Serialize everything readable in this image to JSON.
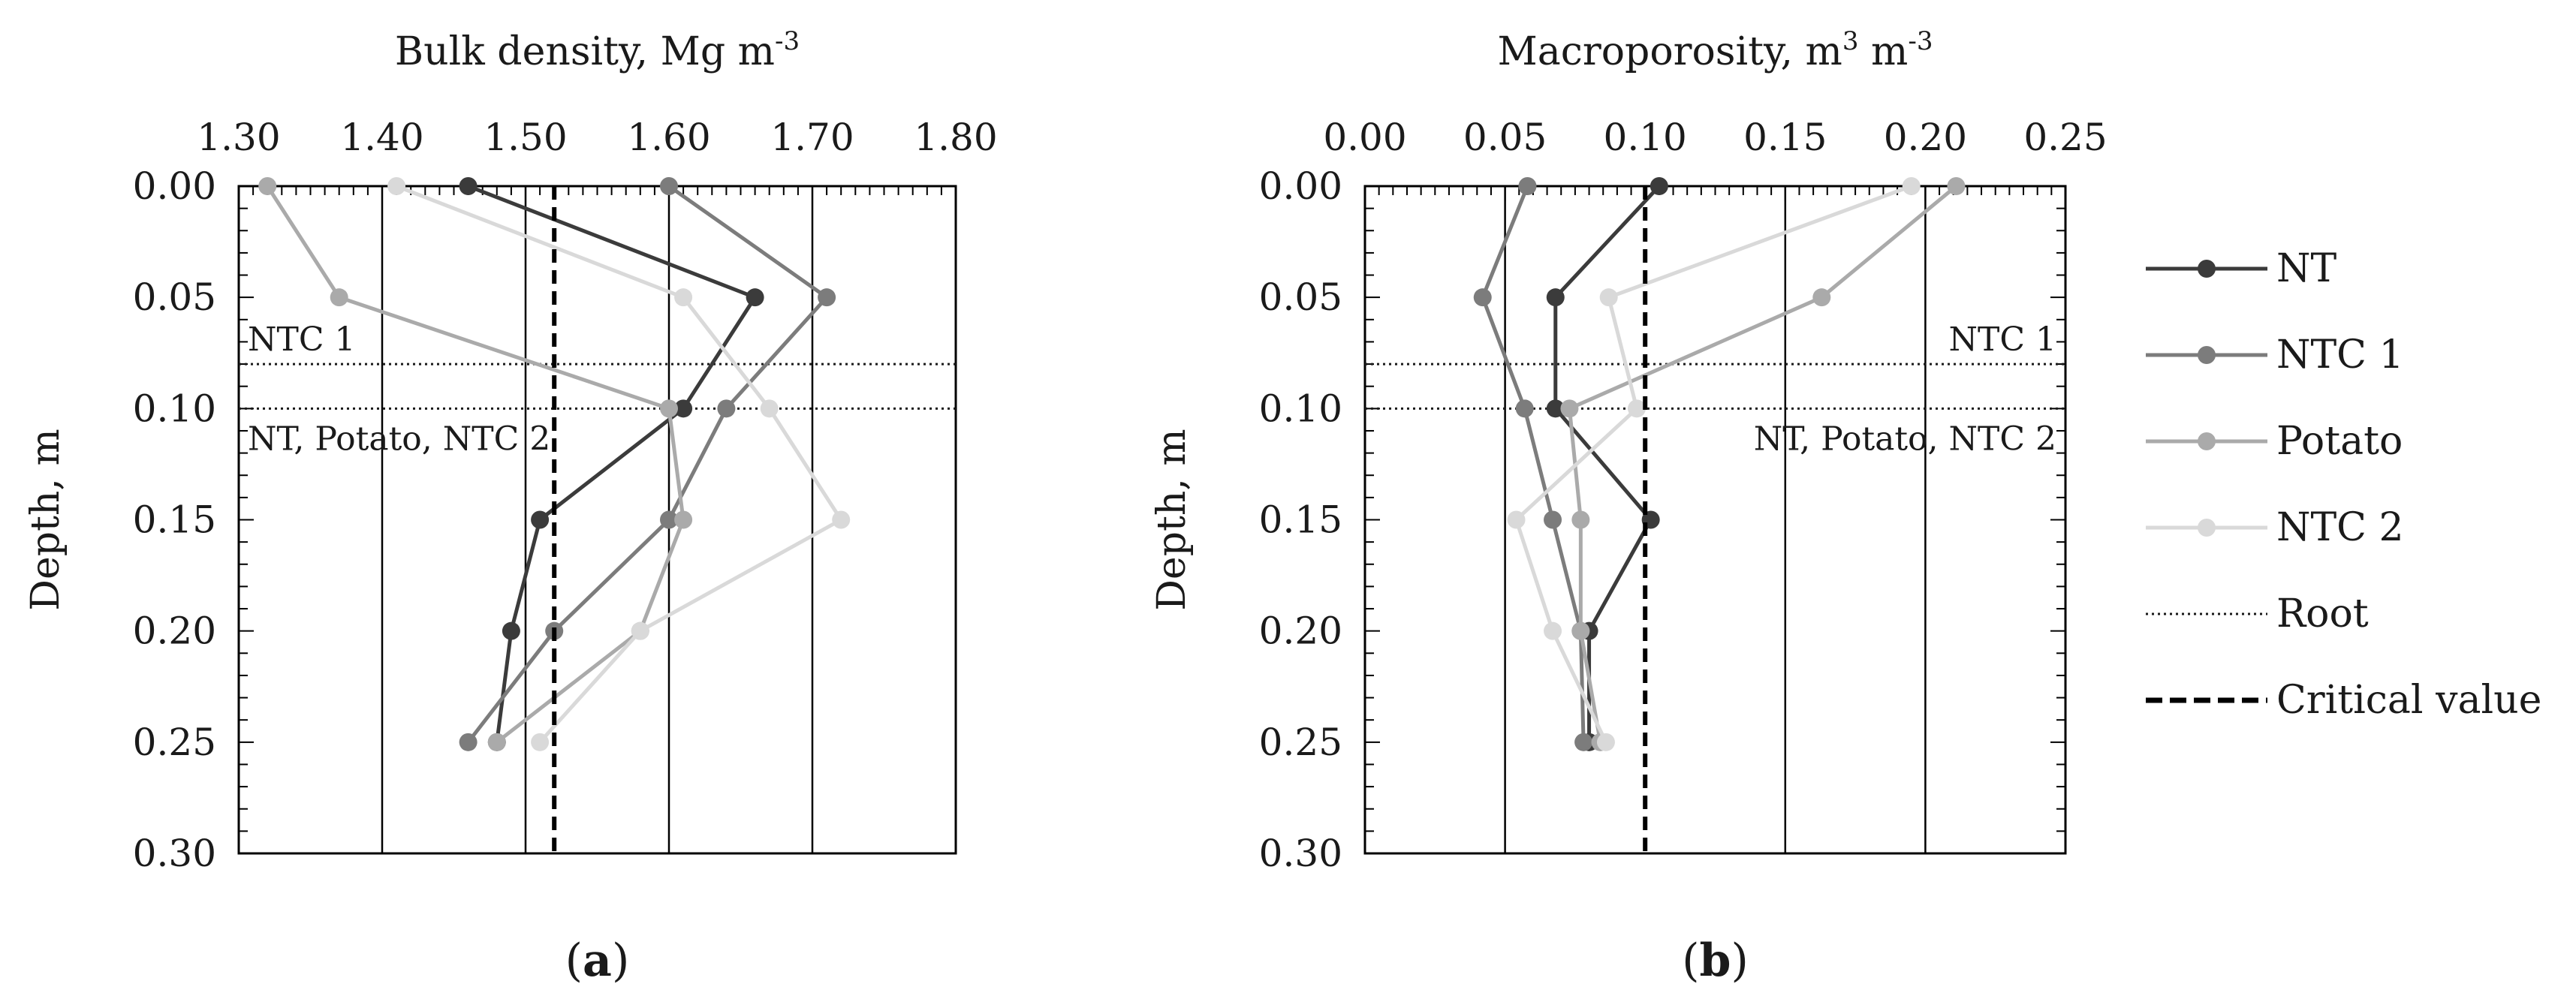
{
  "chart_data": [
    {
      "type": "line",
      "panel_label": {
        "open": "(",
        "letter": "a",
        "close": ")"
      },
      "xlabel": {
        "main": "Bulk density, Mg m",
        "sup": "-3"
      },
      "ylabel": "Depth, m",
      "xlim": [
        1.3,
        1.8
      ],
      "ylim": [
        0.0,
        0.3
      ],
      "y_reversed": true,
      "x_axis_position": "top",
      "xticks": [
        "1.30",
        "1.40",
        "1.50",
        "1.60",
        "1.70",
        "1.80"
      ],
      "xtick_values": [
        1.3,
        1.4,
        1.5,
        1.6,
        1.7,
        1.8
      ],
      "yticks": [
        "0.00",
        "0.05",
        "0.10",
        "0.15",
        "0.20",
        "0.25",
        "0.30"
      ],
      "ytick_values": [
        0.0,
        0.05,
        0.1,
        0.15,
        0.2,
        0.25,
        0.3
      ],
      "vertical_gridlines": [
        1.4,
        1.5,
        1.6,
        1.7
      ],
      "series": [
        {
          "name": "NT",
          "color": "#3b3b3b",
          "points": [
            [
              1.46,
              0.0
            ],
            [
              1.66,
              0.05
            ],
            [
              1.61,
              0.1
            ],
            [
              1.51,
              0.15
            ],
            [
              1.49,
              0.2
            ],
            [
              1.48,
              0.25
            ]
          ]
        },
        {
          "name": "NTC 1",
          "color": "#7c7c7c",
          "points": [
            [
              1.6,
              0.0
            ],
            [
              1.71,
              0.05
            ],
            [
              1.64,
              0.1
            ],
            [
              1.6,
              0.15
            ],
            [
              1.52,
              0.2
            ],
            [
              1.46,
              0.25
            ]
          ]
        },
        {
          "name": "Potato",
          "color": "#aaaaaa",
          "points": [
            [
              1.32,
              0.0
            ],
            [
              1.37,
              0.05
            ],
            [
              1.6,
              0.1
            ],
            [
              1.61,
              0.15
            ],
            [
              1.58,
              0.2
            ],
            [
              1.48,
              0.25
            ]
          ]
        },
        {
          "name": "NTC 2",
          "color": "#d9d9d9",
          "points": [
            [
              1.41,
              0.0
            ],
            [
              1.61,
              0.05
            ],
            [
              1.67,
              0.1
            ],
            [
              1.72,
              0.15
            ],
            [
              1.58,
              0.2
            ],
            [
              1.51,
              0.25
            ]
          ]
        }
      ],
      "root_lines": [
        {
          "depth": 0.08,
          "label": "NTC 1",
          "label_side": "left"
        },
        {
          "depth": 0.1,
          "label": "NT, Potato, NTC 2",
          "label_side": "left"
        }
      ],
      "critical_value": 1.52
    },
    {
      "type": "line",
      "panel_label": {
        "open": "(",
        "letter": "b",
        "close": ")"
      },
      "xlabel": {
        "main": "Macroporosity, m",
        "sup": "3",
        "mid": " m",
        "sup2": "-3"
      },
      "ylabel": "Depth, m",
      "xlim": [
        0.0,
        0.25
      ],
      "ylim": [
        0.0,
        0.3
      ],
      "y_reversed": true,
      "x_axis_position": "top",
      "xticks": [
        "0.00",
        "0.05",
        "0.10",
        "0.15",
        "0.20",
        "0.25"
      ],
      "xtick_values": [
        0.0,
        0.05,
        0.1,
        0.15,
        0.2,
        0.25
      ],
      "yticks": [
        "0.00",
        "0.05",
        "0.10",
        "0.15",
        "0.20",
        "0.25",
        "0.30"
      ],
      "ytick_values": [
        0.0,
        0.05,
        0.1,
        0.15,
        0.2,
        0.25,
        0.3
      ],
      "vertical_gridlines": [
        0.05,
        0.15,
        0.2
      ],
      "series": [
        {
          "name": "NT",
          "color": "#3b3b3b",
          "points": [
            [
              0.105,
              0.0
            ],
            [
              0.068,
              0.05
            ],
            [
              0.068,
              0.1
            ],
            [
              0.102,
              0.15
            ],
            [
              0.08,
              0.2
            ],
            [
              0.08,
              0.25
            ]
          ]
        },
        {
          "name": "NTC 1",
          "color": "#7c7c7c",
          "points": [
            [
              0.058,
              0.0
            ],
            [
              0.042,
              0.05
            ],
            [
              0.057,
              0.1
            ],
            [
              0.067,
              0.15
            ],
            [
              0.077,
              0.2
            ],
            [
              0.078,
              0.25
            ]
          ]
        },
        {
          "name": "Potato",
          "color": "#aaaaaa",
          "points": [
            [
              0.211,
              0.0
            ],
            [
              0.163,
              0.05
            ],
            [
              0.073,
              0.1
            ],
            [
              0.077,
              0.15
            ],
            [
              0.077,
              0.2
            ],
            [
              0.084,
              0.25
            ]
          ]
        },
        {
          "name": "NTC 2",
          "color": "#d9d9d9",
          "points": [
            [
              0.195,
              0.0
            ],
            [
              0.087,
              0.05
            ],
            [
              0.097,
              0.1
            ],
            [
              0.054,
              0.15
            ],
            [
              0.067,
              0.2
            ],
            [
              0.086,
              0.25
            ]
          ]
        }
      ],
      "root_lines": [
        {
          "depth": 0.08,
          "label": "NTC 1",
          "label_side": "right"
        },
        {
          "depth": 0.1,
          "label": "NT, Potato, NTC 2",
          "label_side": "right"
        }
      ],
      "critical_value": 0.1
    }
  ],
  "legend": {
    "position": "right",
    "items": [
      {
        "label": "NT",
        "style": "line-marker",
        "color": "#3b3b3b"
      },
      {
        "label": "NTC 1",
        "style": "line-marker",
        "color": "#7c7c7c"
      },
      {
        "label": "Potato",
        "style": "line-marker",
        "color": "#aaaaaa"
      },
      {
        "label": "NTC 2",
        "style": "line-marker",
        "color": "#d9d9d9"
      },
      {
        "label": "Root",
        "style": "dotted",
        "color": "#1a1a1a"
      },
      {
        "label": "Critical value",
        "style": "dashed",
        "color": "#000000"
      }
    ]
  }
}
